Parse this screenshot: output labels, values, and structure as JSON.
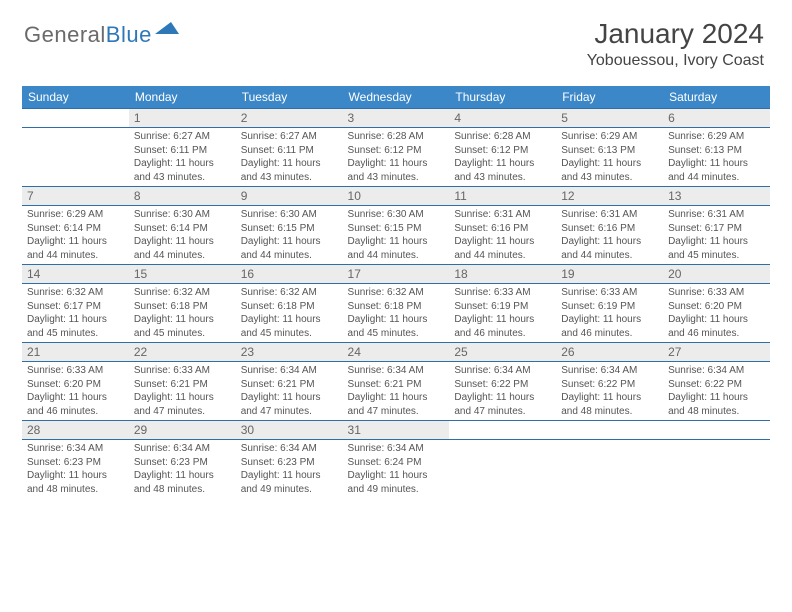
{
  "logo": {
    "text1": "General",
    "text2": "Blue"
  },
  "title": "January 2024",
  "location": "Yobouessou, Ivory Coast",
  "colors": {
    "header_bg": "#3b87c8",
    "header_text": "#ffffff",
    "row_border": "#2f6fa5",
    "daynum_bg": "#ececec",
    "daynum_text": "#666666",
    "body_text": "#555555",
    "logo_gray": "#6a6a6a",
    "logo_blue": "#2f78b7"
  },
  "weekdays": [
    "Sunday",
    "Monday",
    "Tuesday",
    "Wednesday",
    "Thursday",
    "Friday",
    "Saturday"
  ],
  "weeks": [
    [
      null,
      {
        "n": "1",
        "sr": "6:27 AM",
        "ss": "6:11 PM",
        "dl": "11 hours and 43 minutes."
      },
      {
        "n": "2",
        "sr": "6:27 AM",
        "ss": "6:11 PM",
        "dl": "11 hours and 43 minutes."
      },
      {
        "n": "3",
        "sr": "6:28 AM",
        "ss": "6:12 PM",
        "dl": "11 hours and 43 minutes."
      },
      {
        "n": "4",
        "sr": "6:28 AM",
        "ss": "6:12 PM",
        "dl": "11 hours and 43 minutes."
      },
      {
        "n": "5",
        "sr": "6:29 AM",
        "ss": "6:13 PM",
        "dl": "11 hours and 43 minutes."
      },
      {
        "n": "6",
        "sr": "6:29 AM",
        "ss": "6:13 PM",
        "dl": "11 hours and 44 minutes."
      }
    ],
    [
      {
        "n": "7",
        "sr": "6:29 AM",
        "ss": "6:14 PM",
        "dl": "11 hours and 44 minutes."
      },
      {
        "n": "8",
        "sr": "6:30 AM",
        "ss": "6:14 PM",
        "dl": "11 hours and 44 minutes."
      },
      {
        "n": "9",
        "sr": "6:30 AM",
        "ss": "6:15 PM",
        "dl": "11 hours and 44 minutes."
      },
      {
        "n": "10",
        "sr": "6:30 AM",
        "ss": "6:15 PM",
        "dl": "11 hours and 44 minutes."
      },
      {
        "n": "11",
        "sr": "6:31 AM",
        "ss": "6:16 PM",
        "dl": "11 hours and 44 minutes."
      },
      {
        "n": "12",
        "sr": "6:31 AM",
        "ss": "6:16 PM",
        "dl": "11 hours and 44 minutes."
      },
      {
        "n": "13",
        "sr": "6:31 AM",
        "ss": "6:17 PM",
        "dl": "11 hours and 45 minutes."
      }
    ],
    [
      {
        "n": "14",
        "sr": "6:32 AM",
        "ss": "6:17 PM",
        "dl": "11 hours and 45 minutes."
      },
      {
        "n": "15",
        "sr": "6:32 AM",
        "ss": "6:18 PM",
        "dl": "11 hours and 45 minutes."
      },
      {
        "n": "16",
        "sr": "6:32 AM",
        "ss": "6:18 PM",
        "dl": "11 hours and 45 minutes."
      },
      {
        "n": "17",
        "sr": "6:32 AM",
        "ss": "6:18 PM",
        "dl": "11 hours and 45 minutes."
      },
      {
        "n": "18",
        "sr": "6:33 AM",
        "ss": "6:19 PM",
        "dl": "11 hours and 46 minutes."
      },
      {
        "n": "19",
        "sr": "6:33 AM",
        "ss": "6:19 PM",
        "dl": "11 hours and 46 minutes."
      },
      {
        "n": "20",
        "sr": "6:33 AM",
        "ss": "6:20 PM",
        "dl": "11 hours and 46 minutes."
      }
    ],
    [
      {
        "n": "21",
        "sr": "6:33 AM",
        "ss": "6:20 PM",
        "dl": "11 hours and 46 minutes."
      },
      {
        "n": "22",
        "sr": "6:33 AM",
        "ss": "6:21 PM",
        "dl": "11 hours and 47 minutes."
      },
      {
        "n": "23",
        "sr": "6:34 AM",
        "ss": "6:21 PM",
        "dl": "11 hours and 47 minutes."
      },
      {
        "n": "24",
        "sr": "6:34 AM",
        "ss": "6:21 PM",
        "dl": "11 hours and 47 minutes."
      },
      {
        "n": "25",
        "sr": "6:34 AM",
        "ss": "6:22 PM",
        "dl": "11 hours and 47 minutes."
      },
      {
        "n": "26",
        "sr": "6:34 AM",
        "ss": "6:22 PM",
        "dl": "11 hours and 48 minutes."
      },
      {
        "n": "27",
        "sr": "6:34 AM",
        "ss": "6:22 PM",
        "dl": "11 hours and 48 minutes."
      }
    ],
    [
      {
        "n": "28",
        "sr": "6:34 AM",
        "ss": "6:23 PM",
        "dl": "11 hours and 48 minutes."
      },
      {
        "n": "29",
        "sr": "6:34 AM",
        "ss": "6:23 PM",
        "dl": "11 hours and 48 minutes."
      },
      {
        "n": "30",
        "sr": "6:34 AM",
        "ss": "6:23 PM",
        "dl": "11 hours and 49 minutes."
      },
      {
        "n": "31",
        "sr": "6:34 AM",
        "ss": "6:24 PM",
        "dl": "11 hours and 49 minutes."
      },
      null,
      null,
      null
    ]
  ],
  "labels": {
    "sunrise": "Sunrise:",
    "sunset": "Sunset:",
    "daylight": "Daylight:"
  }
}
